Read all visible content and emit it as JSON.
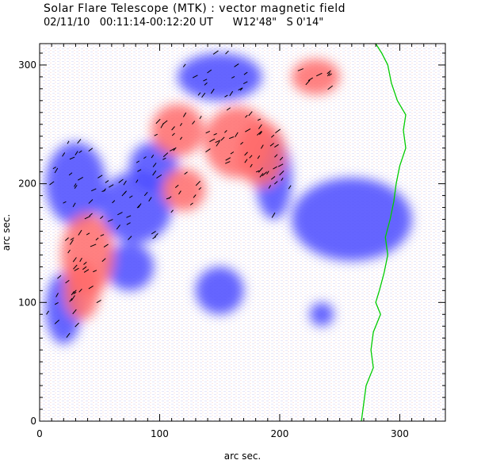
{
  "header": {
    "title": "Solar Flare Telescope (MTK) : vector magnetic field",
    "subtitle": "02/11/10   00:11:14-00:12:20 UT      W12'48\"   S 0'14\""
  },
  "chart_data": {
    "type": "heatmap",
    "xlabel": "arc sec.",
    "ylabel": "arc sec.",
    "xlim": [
      0,
      338
    ],
    "ylim": [
      0,
      318
    ],
    "xticks": [
      "0",
      "100",
      "200",
      "300"
    ],
    "yticks": [
      "0",
      "100",
      "200",
      "300"
    ],
    "colors": {
      "positive": "#ff6b6b",
      "negative": "#4a4aff",
      "contour": "#00cc00",
      "vector": "#000000"
    },
    "positive_regions": [
      {
        "x": 40,
        "y": 140,
        "rx": 22,
        "ry": 35
      },
      {
        "x": 35,
        "y": 110,
        "rx": 15,
        "ry": 25
      },
      {
        "x": 115,
        "y": 245,
        "rx": 22,
        "ry": 22
      },
      {
        "x": 165,
        "y": 235,
        "rx": 28,
        "ry": 30
      },
      {
        "x": 185,
        "y": 225,
        "rx": 20,
        "ry": 28
      },
      {
        "x": 120,
        "y": 195,
        "rx": 18,
        "ry": 18
      },
      {
        "x": 230,
        "y": 290,
        "rx": 20,
        "ry": 15
      }
    ],
    "negative_regions": [
      {
        "x": 20,
        "y": 95,
        "rx": 15,
        "ry": 30
      },
      {
        "x": 30,
        "y": 200,
        "rx": 25,
        "ry": 35
      },
      {
        "x": 80,
        "y": 180,
        "rx": 30,
        "ry": 30
      },
      {
        "x": 95,
        "y": 215,
        "rx": 20,
        "ry": 20
      },
      {
        "x": 150,
        "y": 290,
        "rx": 35,
        "ry": 20
      },
      {
        "x": 195,
        "y": 205,
        "rx": 15,
        "ry": 35
      },
      {
        "x": 75,
        "y": 130,
        "rx": 20,
        "ry": 20
      },
      {
        "x": 150,
        "y": 110,
        "rx": 20,
        "ry": 20
      },
      {
        "x": 235,
        "y": 90,
        "rx": 10,
        "ry": 10
      },
      {
        "x": 260,
        "y": 170,
        "rx": 50,
        "ry": 35
      }
    ],
    "limb_contour": [
      [
        280,
        318
      ],
      [
        285,
        310
      ],
      [
        290,
        300
      ],
      [
        293,
        285
      ],
      [
        298,
        270
      ],
      [
        305,
        258
      ],
      [
        303,
        245
      ],
      [
        305,
        230
      ],
      [
        300,
        215
      ],
      [
        297,
        200
      ],
      [
        295,
        185
      ],
      [
        292,
        170
      ],
      [
        288,
        155
      ],
      [
        290,
        140
      ],
      [
        287,
        125
      ],
      [
        283,
        110
      ],
      [
        280,
        100
      ],
      [
        284,
        90
      ],
      [
        278,
        75
      ],
      [
        276,
        60
      ],
      [
        278,
        45
      ],
      [
        272,
        30
      ],
      [
        270,
        15
      ],
      [
        268,
        0
      ]
    ]
  }
}
